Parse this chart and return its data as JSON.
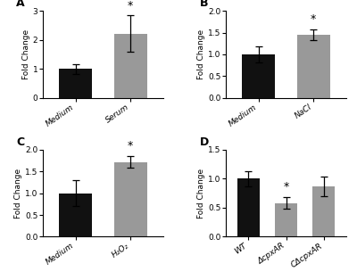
{
  "panels": [
    {
      "label": "A",
      "categories": [
        "Medium",
        "Serum"
      ],
      "values": [
        1.0,
        2.22
      ],
      "errors": [
        0.17,
        0.62
      ],
      "colors": [
        "#111111",
        "#999999"
      ],
      "ylim": [
        0,
        3.0
      ],
      "yticks": [
        0,
        1,
        2,
        3
      ],
      "ytick_labels": [
        "0",
        "1",
        "2",
        "3"
      ],
      "ylabel": "Fold Change",
      "sig_idx": 1,
      "sig_star": "*"
    },
    {
      "label": "B",
      "categories": [
        "Medium",
        "NaCl"
      ],
      "values": [
        1.0,
        1.45
      ],
      "errors": [
        0.18,
        0.13
      ],
      "colors": [
        "#111111",
        "#999999"
      ],
      "ylim": [
        0,
        2.0
      ],
      "yticks": [
        0.0,
        0.5,
        1.0,
        1.5,
        2.0
      ],
      "ytick_labels": [
        "0.0",
        "0.5",
        "1.0",
        "1.5",
        "2.0"
      ],
      "ylabel": "Fold Change",
      "sig_idx": 1,
      "sig_star": "*"
    },
    {
      "label": "C",
      "categories": [
        "Medium",
        "H₂O₂"
      ],
      "values": [
        1.0,
        1.72
      ],
      "errors": [
        0.3,
        0.13
      ],
      "colors": [
        "#111111",
        "#999999"
      ],
      "ylim": [
        0,
        2.0
      ],
      "yticks": [
        0.0,
        0.5,
        1.0,
        1.5,
        2.0
      ],
      "ytick_labels": [
        "0.0",
        "0.5",
        "1.0",
        "1.5",
        "2.0"
      ],
      "ylabel": "Fold Change",
      "sig_idx": 1,
      "sig_star": "*"
    },
    {
      "label": "D",
      "categories": [
        "WT",
        "ΔcpxAR",
        "CΔcpxAR"
      ],
      "values": [
        1.0,
        0.58,
        0.87
      ],
      "errors": [
        0.13,
        0.1,
        0.17
      ],
      "colors": [
        "#111111",
        "#999999",
        "#999999"
      ],
      "ylim": [
        0,
        1.5
      ],
      "yticks": [
        0.0,
        0.5,
        1.0,
        1.5
      ],
      "ytick_labels": [
        "0.0",
        "0.5",
        "1.0",
        "1.5"
      ],
      "ylabel": "Fold Change",
      "sig_idx": 1,
      "sig_star": "*"
    }
  ],
  "bg_color": "#ffffff",
  "bar_width": 0.6,
  "capsize": 3,
  "font_size": 6.5,
  "label_font_size": 9
}
